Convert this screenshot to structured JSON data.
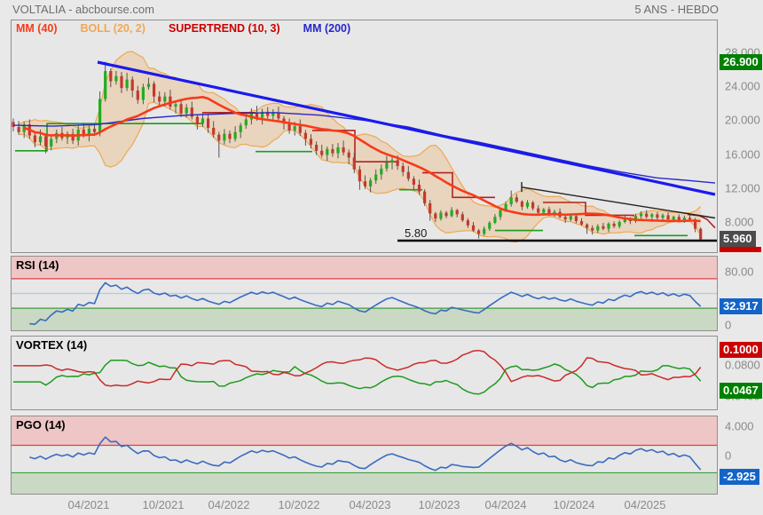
{
  "header": {
    "title": "VOLTALIA - abcbourse.com",
    "range_label": "5 ANS - HEBDO"
  },
  "legend": {
    "items": [
      {
        "name": "mm40",
        "label": "MM (40)",
        "color": "#f83a1a"
      },
      {
        "name": "boll",
        "label": "BOLL (20, 2)",
        "color": "#f2a654"
      },
      {
        "name": "supertrend",
        "label": "SUPERTREND (10, 3)",
        "color": "#cc0000"
      },
      {
        "name": "mm200",
        "label": "MM (200)",
        "color": "#2525cc"
      }
    ]
  },
  "x_axis": {
    "labels": [
      "04/2021",
      "10/2021",
      "04/2022",
      "10/2022",
      "04/2023",
      "10/2023",
      "04/2024",
      "10/2024",
      "04/2025"
    ],
    "positions": [
      100,
      184,
      258,
      337,
      417,
      495,
      570,
      647,
      727
    ]
  },
  "chart_data": [
    {
      "type": "candlestick",
      "name": "price",
      "x_start": 15,
      "x_step": 6.1,
      "ylim": [
        4.0,
        31.8
      ],
      "open0": 19.8,
      "closes": [
        19.2,
        18.6,
        19.5,
        18.2,
        17.4,
        18.1,
        16.9,
        17.8,
        18.5,
        17.9,
        18.4,
        17.6,
        18.9,
        18.3,
        19.0,
        18.6,
        22.5,
        25.8,
        24.6,
        25.2,
        23.8,
        24.8,
        23.5,
        22.4,
        23.9,
        24.3,
        22.8,
        22.2,
        22.8,
        21.6,
        21.9,
        20.8,
        21.5,
        20.4,
        19.6,
        20.2,
        19.1,
        18.3,
        17.6,
        18.4,
        17.8,
        18.6,
        19.4,
        20.1,
        20.9,
        20.3,
        21.0,
        20.5,
        20.9,
        20.2,
        19.6,
        18.8,
        19.3,
        18.5,
        17.8,
        17.1,
        16.4,
        15.9,
        16.6,
        16.1,
        16.8,
        16.2,
        15.6,
        14.2,
        12.8,
        12.2,
        12.9,
        13.6,
        14.3,
        15.0,
        15.3,
        14.6,
        13.9,
        13.1,
        12.4,
        11.6,
        10.2,
        9.0,
        8.4,
        9.1,
        8.7,
        9.4,
        8.9,
        8.2,
        7.6,
        7.0,
        6.6,
        7.2,
        7.9,
        8.6,
        9.4,
        10.1,
        10.9,
        10.4,
        9.8,
        10.3,
        9.6,
        9.1,
        9.5,
        8.9,
        9.2,
        8.6,
        8.3,
        8.7,
        8.1,
        7.7,
        7.3,
        7.0,
        7.5,
        7.2,
        7.8,
        7.5,
        8.0,
        8.4,
        8.1,
        8.7,
        9.0,
        8.6,
        8.9,
        8.5,
        8.8,
        8.3,
        8.6,
        8.2,
        8.5,
        8.3,
        7.2,
        5.96
      ],
      "wick_high_cycle": [
        0.4,
        0.7,
        0.3,
        0.6,
        0.5,
        0.8,
        0.35,
        0.55
      ],
      "wick_low_cycle": [
        0.5,
        0.3,
        0.7,
        0.4,
        0.6,
        0.35,
        0.8,
        0.45
      ],
      "overrides": {
        "16": {
          "h": 23.4
        },
        "17": {
          "h": 26.9
        },
        "38": {
          "l": 15.6
        },
        "64": {
          "l": 11.8
        },
        "77": {
          "l": 8.15
        },
        "86": {
          "l": 6.05
        },
        "92": {
          "h": 11.7
        },
        "106": {
          "l": 6.6
        },
        "107": {
          "l": 6.5
        },
        "127": {
          "h": 7.35,
          "l": 5.85
        }
      },
      "candle_up_color": "#1fae1f",
      "candle_down_color": "#c3392f",
      "mm40": {
        "window": 20,
        "color": "#f83a1a",
        "width": 2.6
      },
      "boll": {
        "window": 10,
        "k": 2,
        "stroke": "#eda954",
        "fill": "rgba(235,185,130,0.42)"
      },
      "mm200": {
        "color": "#2828c8",
        "width": 1.4,
        "points": [
          [
            15,
            19.4
          ],
          [
            60,
            19.3
          ],
          [
            110,
            19.5
          ],
          [
            160,
            20.2
          ],
          [
            210,
            20.6
          ],
          [
            260,
            20.8
          ],
          [
            310,
            20.9
          ],
          [
            360,
            20.6
          ],
          [
            410,
            20.0
          ],
          [
            460,
            19.2
          ],
          [
            500,
            18.2
          ],
          [
            540,
            17.4
          ],
          [
            580,
            16.5
          ],
          [
            620,
            15.6
          ],
          [
            660,
            14.7
          ],
          [
            700,
            13.9
          ],
          [
            740,
            13.2
          ],
          [
            775,
            12.9
          ],
          [
            806,
            12.6
          ]
        ]
      },
      "supertrend": {
        "color_up": "#1e9b1e",
        "color_down": "#b22222",
        "width": 1.6,
        "up_segments": [
          [
            [
              17,
              16.4
            ],
            [
              53,
              16.4
            ],
            [
              53,
              19.6
            ],
            [
              228,
              19.6
            ]
          ],
          [
            [
              288,
              16.3
            ],
            [
              352,
              16.3
            ]
          ],
          [
            [
              450,
              11.8
            ],
            [
              476,
              11.8
            ]
          ],
          [
            [
              558,
              7.0
            ],
            [
              612,
              7.0
            ]
          ],
          [
            [
              715,
              6.4
            ],
            [
              775,
              6.4
            ]
          ]
        ],
        "down_segments": [
          [
            [
              228,
              20.9
            ],
            [
              288,
              20.9
            ]
          ],
          [
            [
              352,
              18.8
            ],
            [
              400,
              18.8
            ],
            [
              400,
              15.1
            ],
            [
              450,
              15.1
            ]
          ],
          [
            [
              476,
              13.8
            ],
            [
              510,
              13.8
            ],
            [
              510,
              10.9
            ],
            [
              558,
              10.9
            ]
          ],
          [
            [
              612,
              10.3
            ],
            [
              660,
              10.3
            ],
            [
              660,
              8.8
            ],
            [
              715,
              8.8
            ]
          ],
          [
            [
              775,
              8.9
            ],
            [
              788,
              8.75
            ],
            [
              797,
              8.3
            ],
            [
              806,
              7.3
            ]
          ]
        ]
      },
      "trendlines": [
        {
          "name": "blue-trendline",
          "points": [
            [
              110,
              26.85
            ],
            [
              806,
              11.25
            ]
          ],
          "color": "#1a1aee",
          "width": 3.2
        },
        {
          "name": "black-trendline",
          "points": [
            [
              588,
              12.1
            ],
            [
              806,
              8.47
            ]
          ],
          "color": "#222222",
          "width": 1.4
        },
        {
          "name": "black-trendline-tick",
          "points": [
            [
              588,
              12.7
            ],
            [
              588,
              11.55
            ]
          ],
          "color": "#222222",
          "width": 1.4
        }
      ],
      "support_line": {
        "value": 5.8,
        "label": "5.80",
        "x_from": 448,
        "color": "#000000",
        "width": 2.6
      },
      "y_axis": {
        "ticks": [
          {
            "label": "28.000",
            "value": 28
          },
          {
            "label": "24.000",
            "value": 24
          },
          {
            "label": "20.000",
            "value": 20
          },
          {
            "label": "16.000",
            "value": 16
          },
          {
            "label": "12.000",
            "value": 12
          },
          {
            "label": "8.000",
            "value": 8
          }
        ],
        "badges": [
          {
            "name": "high-badge",
            "label": "26.900",
            "value": 26.9,
            "color": "#008000"
          },
          {
            "name": "last-badge",
            "label": "5.960",
            "value": 5.96,
            "color": "#4c4c4c"
          }
        ],
        "under_badge_strip": "#cc0000"
      }
    },
    {
      "type": "line",
      "name": "rsi",
      "label": "RSI (14)",
      "label_color": "#2a52be",
      "period": 14,
      "range": [
        0,
        100
      ],
      "zones": {
        "overbought_line": 70,
        "mid_line": 50,
        "oversold_line": 30,
        "band_fill_top": "#eec6c6",
        "band_fill_bottom": "#c9d9c4",
        "line_top": "#e04040",
        "line_mid": "#a6cdf0",
        "line_bottom": "#3f9e3f"
      },
      "line_color": "#3a6bbf",
      "axis_labels": [
        {
          "label": "80.00",
          "value": 80
        },
        {
          "label": "0",
          "value": 0
        }
      ],
      "badges": [
        {
          "name": "rsi-value-badge",
          "label": "32.917",
          "value": 32.917,
          "color": "#1464c8"
        }
      ]
    },
    {
      "type": "line",
      "name": "vortex",
      "label": "VORTEX (14)",
      "label_color": "#1e8c1e",
      "period": 14,
      "range": [
        0.022,
        0.118
      ],
      "vi_plus_color": "#1e9b1e",
      "vi_minus_color": "#cc2a2a",
      "axis_labels": [
        {
          "label": "0.0800",
          "value": 0.08
        },
        {
          "label": "0.0400",
          "value": 0.04
        }
      ],
      "badges": [
        {
          "name": "vi-minus-badge",
          "label": "0.1000",
          "value": 0.1,
          "color": "#cc0000"
        },
        {
          "name": "vi-plus-badge",
          "label": "0.0467",
          "value": 0.0467,
          "color": "#008000"
        }
      ]
    },
    {
      "type": "line",
      "name": "pgo",
      "label": "PGO (14)",
      "label_color": "#2a52be",
      "period": 14,
      "range": [
        -5.3,
        5.4
      ],
      "zones": {
        "upper_line": 1.4,
        "lower_line": -2.4,
        "band_fill_top": "#eec6c6",
        "band_fill_bottom": "#c9d9c4",
        "line_top": "#e04040",
        "line_bottom": "#3f9e3f"
      },
      "line_color": "#3a6bbf",
      "axis_labels": [
        {
          "label": "4.000",
          "value": 4
        },
        {
          "label": "0",
          "value": 0
        }
      ],
      "badges": [
        {
          "name": "pgo-value-badge",
          "label": "-2.925",
          "value": -2.925,
          "color": "#1464c8"
        }
      ]
    }
  ]
}
